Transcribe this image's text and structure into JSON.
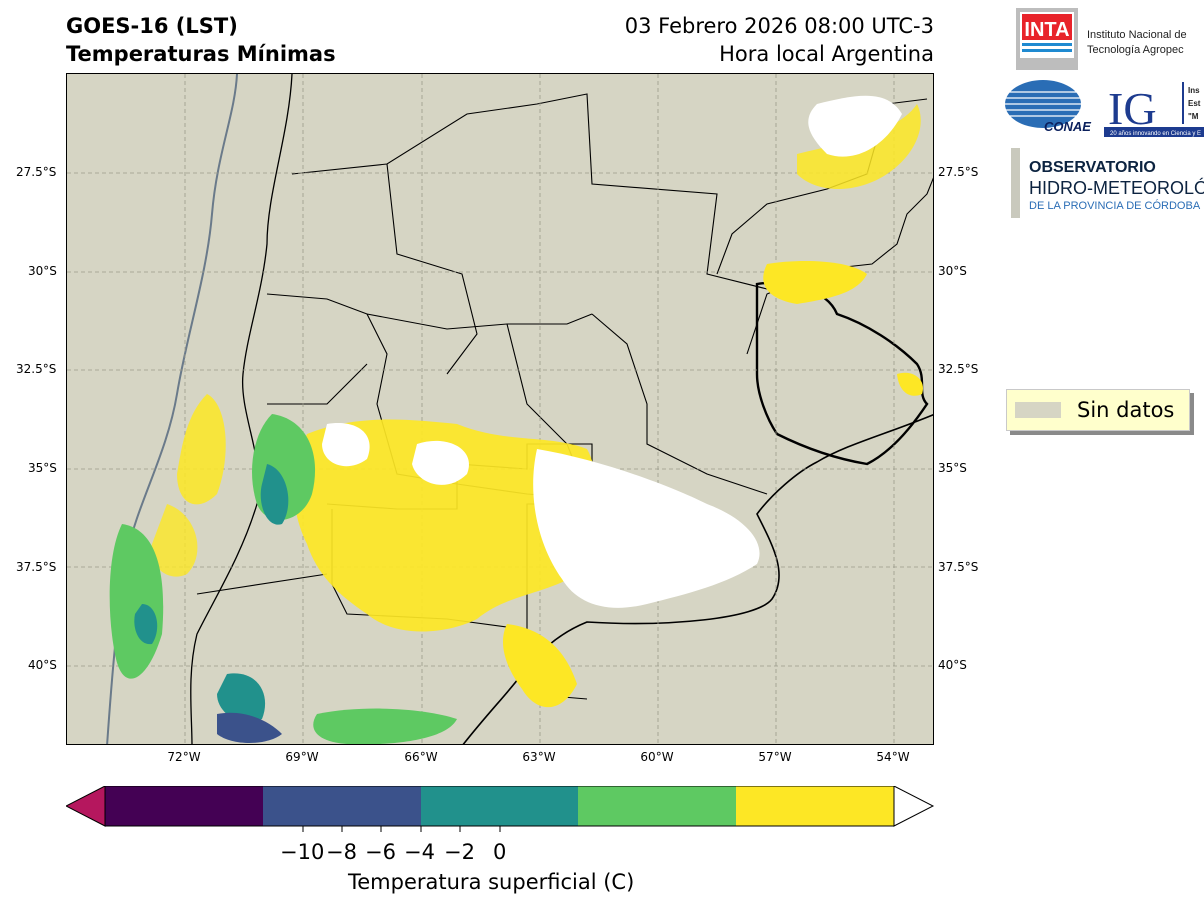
{
  "title": {
    "line1": "GOES-16 (LST)",
    "line2": "Temperaturas Mínimas"
  },
  "datetime": {
    "line1": "03 Febrero 2026 08:00 UTC-3",
    "line2": "Hora local Argentina"
  },
  "map": {
    "lat_ticks": [
      "27.5°S",
      "30°S",
      "32.5°S",
      "35°S",
      "37.5°S",
      "40°S"
    ],
    "lon_ticks": [
      "72°W",
      "69°W",
      "66°W",
      "63°W",
      "60°W",
      "57°W",
      "54°W"
    ],
    "background_color": "#d6d5c4",
    "region": "Centro-norte de Argentina, Uruguay y sur de Brasil"
  },
  "legend": {
    "label": "Sin datos",
    "swatch_color": "#d6d5c4"
  },
  "colorbar": {
    "ticks": [
      "−10",
      "−8",
      "−6",
      "−4",
      "−2",
      "0"
    ],
    "label": "Temperatura superficial (C)",
    "under_color": "#b5175e",
    "over_color": "#ffffff",
    "segments": [
      {
        "color": "#440154"
      },
      {
        "color": "#3b528b"
      },
      {
        "color": "#21918c"
      },
      {
        "color": "#5ec962"
      },
      {
        "color": "#fde725"
      }
    ]
  },
  "logos": {
    "inta_text": "INTA",
    "inta_name1": "Instituto Nacional de",
    "inta_name2": "Tecnología Agropec",
    "conae": "CONAE",
    "ig": "IG",
    "ig_sub1": "Ins",
    "ig_sub2": "Est",
    "ig_sub3": "\"M",
    "ig_band": "20 años innovando en Ciencia y E",
    "obs1": "OBSERVATORIO",
    "obs2": "HIDRO-METEOROLÓG",
    "obs3": "DE LA PROVINCIA DE CÓRDOBA"
  }
}
